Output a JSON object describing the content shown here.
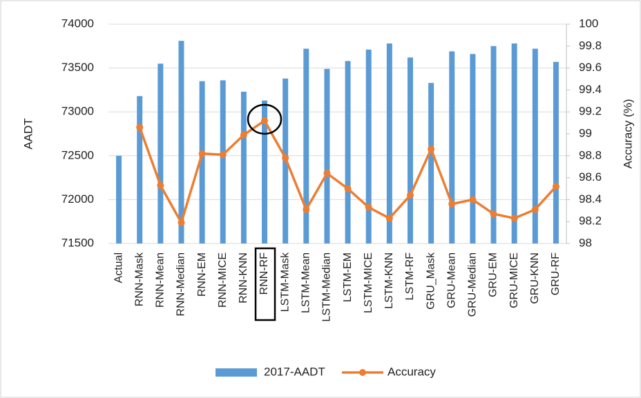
{
  "chart_data": {
    "type": "bar-line",
    "categories": [
      "Actual",
      "RNN-Mask",
      "RNN-Mean",
      "RNN-Median",
      "RNN-EM",
      "RNN-MICE",
      "RNN-KNN",
      "RNN-RF",
      "LSTM-Mask",
      "LSTM-Mean",
      "LSTM-Median",
      "LSTM-EM",
      "LSTM-MICE",
      "LSTM-KNN",
      "LSTM-RF",
      "GRU_Mask",
      "GRU-Mean",
      "GRU-Median",
      "GRU-EM",
      "GRU-MICE",
      "GRU-KNN",
      "GRU-RF"
    ],
    "series": [
      {
        "name": "2017-AADT",
        "type": "bar",
        "color": "#5b9bd5",
        "values": [
          72500,
          73180,
          73550,
          73810,
          73350,
          73360,
          73230,
          73130,
          73380,
          73720,
          73490,
          73580,
          73710,
          73780,
          73620,
          73330,
          73690,
          73660,
          73750,
          73780,
          73720,
          73570
        ]
      },
      {
        "name": "Accuracy",
        "type": "line",
        "axis": "y2",
        "color": "#ed7d31",
        "values": [
          null,
          99.06,
          98.53,
          98.19,
          98.82,
          98.81,
          98.99,
          99.12,
          98.78,
          98.31,
          98.64,
          98.5,
          98.33,
          98.23,
          98.44,
          98.86,
          98.36,
          98.4,
          98.27,
          98.23,
          98.31,
          98.52
        ]
      }
    ],
    "ylabel": "AADT",
    "y2label": "Accuracy (%)",
    "ylim": [
      71500,
      74000
    ],
    "yticks": [
      71500,
      72000,
      72500,
      73000,
      73500,
      74000
    ],
    "y2lim": [
      98,
      100
    ],
    "y2ticks": [
      98,
      98.2,
      98.4,
      98.6,
      98.8,
      99,
      99.2,
      99.4,
      99.6,
      99.8,
      100
    ],
    "legend": "bottom"
  }
}
